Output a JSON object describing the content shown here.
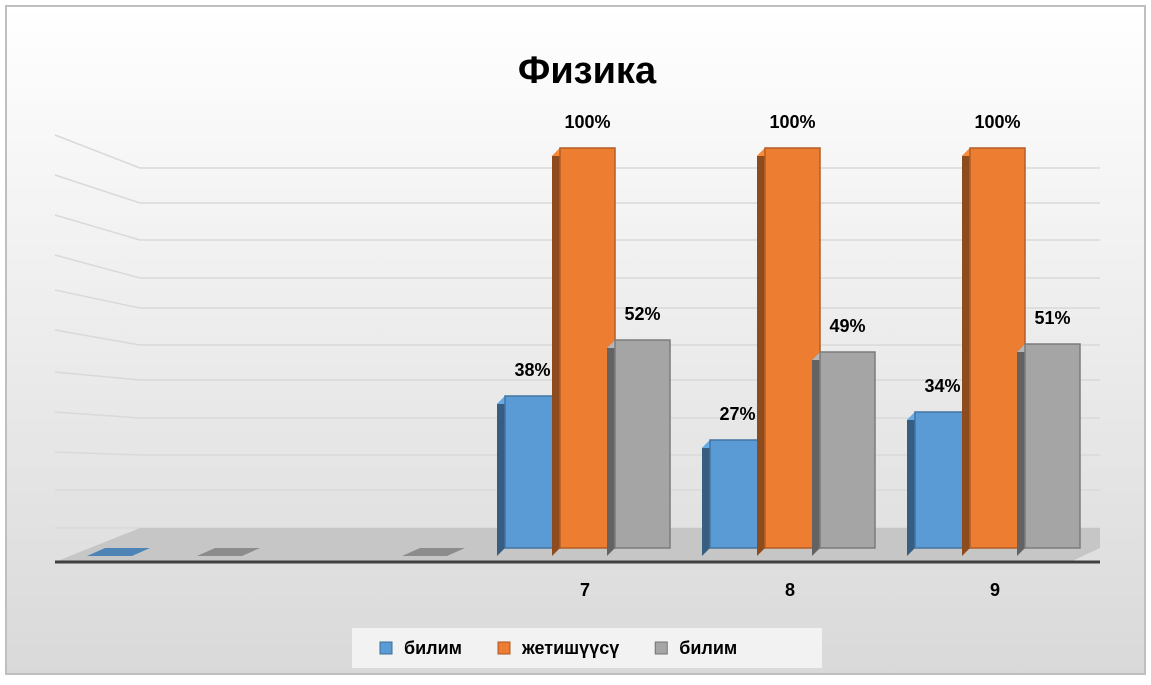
{
  "chart_data": {
    "type": "bar",
    "title": "Физика",
    "categories": [
      null,
      null,
      "7",
      "8",
      "9"
    ],
    "series": [
      {
        "name": "билим",
        "color": "#5b9bd5",
        "values": [
          0,
          null,
          38,
          27,
          34
        ],
        "value_labels": [
          null,
          null,
          "38%",
          "27%",
          "34%"
        ]
      },
      {
        "name": "жетишүүсү",
        "color": "#ed7d31",
        "values": [
          null,
          null,
          100,
          100,
          100
        ],
        "value_labels": [
          null,
          null,
          "100%",
          "100%",
          "100%"
        ]
      },
      {
        "name": "билим",
        "color": "#a5a5a5",
        "values": [
          0,
          0,
          52,
          49,
          51
        ],
        "value_labels": [
          null,
          null,
          "52%",
          "49%",
          "51%"
        ]
      }
    ],
    "ylim": [
      0,
      100
    ],
    "grid": true,
    "legend": "bottom"
  }
}
